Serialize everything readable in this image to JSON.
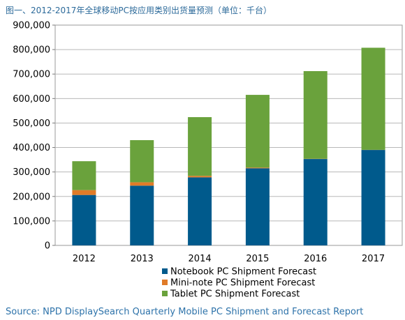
{
  "title": "图一、2012-2017年全球移动PC按应用类别出货量预测（单位：千台）",
  "source": "Source: NPD DisplaySearch Quarterly Mobile PC Shipment and Forecast Report",
  "chart_data": {
    "type": "bar",
    "stacked": true,
    "categories": [
      "2012",
      "2013",
      "2014",
      "2015",
      "2016",
      "2017"
    ],
    "series": [
      {
        "name": "Notebook PC Shipment Forecast",
        "color": "#005a8c",
        "values": [
          206000,
          244000,
          278000,
          315000,
          353000,
          390000
        ]
      },
      {
        "name": "Mini-note PC Shipment Forecast",
        "color": "#e07b28",
        "values": [
          20000,
          14000,
          6000,
          3000,
          1000,
          500
        ]
      },
      {
        "name": "Tablet PC Shipment Forecast",
        "color": "#6aa23c",
        "values": [
          118000,
          172000,
          240000,
          297000,
          358000,
          417000
        ]
      }
    ],
    "ylim": [
      0,
      900000
    ],
    "yticks": [
      "0",
      "100,000",
      "200,000",
      "300,000",
      "400,000",
      "500,000",
      "600,000",
      "700,000",
      "800,000",
      "900,000"
    ],
    "grid": true,
    "legend_position": "bottom"
  }
}
